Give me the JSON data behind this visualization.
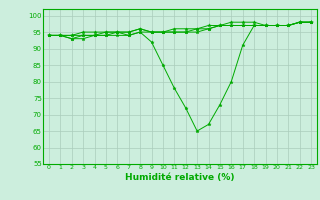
{
  "xlabel": "Humidité relative (%)",
  "background_color": "#cceedd",
  "grid_color": "#aaccbb",
  "line_color": "#00aa00",
  "marker": "*",
  "ylim": [
    55,
    102
  ],
  "yticks": [
    55,
    60,
    65,
    70,
    75,
    80,
    85,
    90,
    95,
    100
  ],
  "xlim": [
    -0.5,
    23.5
  ],
  "xticks": [
    0,
    1,
    2,
    3,
    4,
    5,
    6,
    7,
    8,
    9,
    10,
    11,
    12,
    13,
    14,
    15,
    16,
    17,
    18,
    19,
    20,
    21,
    22,
    23
  ],
  "series": [
    [
      94,
      94,
      93,
      93,
      94,
      94,
      94,
      94,
      95,
      92,
      85,
      78,
      72,
      65,
      67,
      73,
      80,
      91,
      97,
      97,
      97,
      97,
      98,
      98
    ],
    [
      94,
      94,
      93,
      94,
      94,
      94,
      95,
      94,
      95,
      95,
      95,
      95,
      95,
      95,
      96,
      97,
      97,
      97,
      97,
      97,
      97,
      97,
      98,
      98
    ],
    [
      94,
      94,
      94,
      94,
      94,
      95,
      95,
      95,
      96,
      95,
      95,
      95,
      95,
      96,
      96,
      97,
      97,
      97,
      97,
      97,
      97,
      97,
      98,
      98
    ],
    [
      94,
      94,
      94,
      95,
      95,
      95,
      95,
      95,
      96,
      95,
      95,
      96,
      96,
      96,
      97,
      97,
      98,
      98,
      98,
      97,
      97,
      97,
      98,
      98
    ]
  ]
}
